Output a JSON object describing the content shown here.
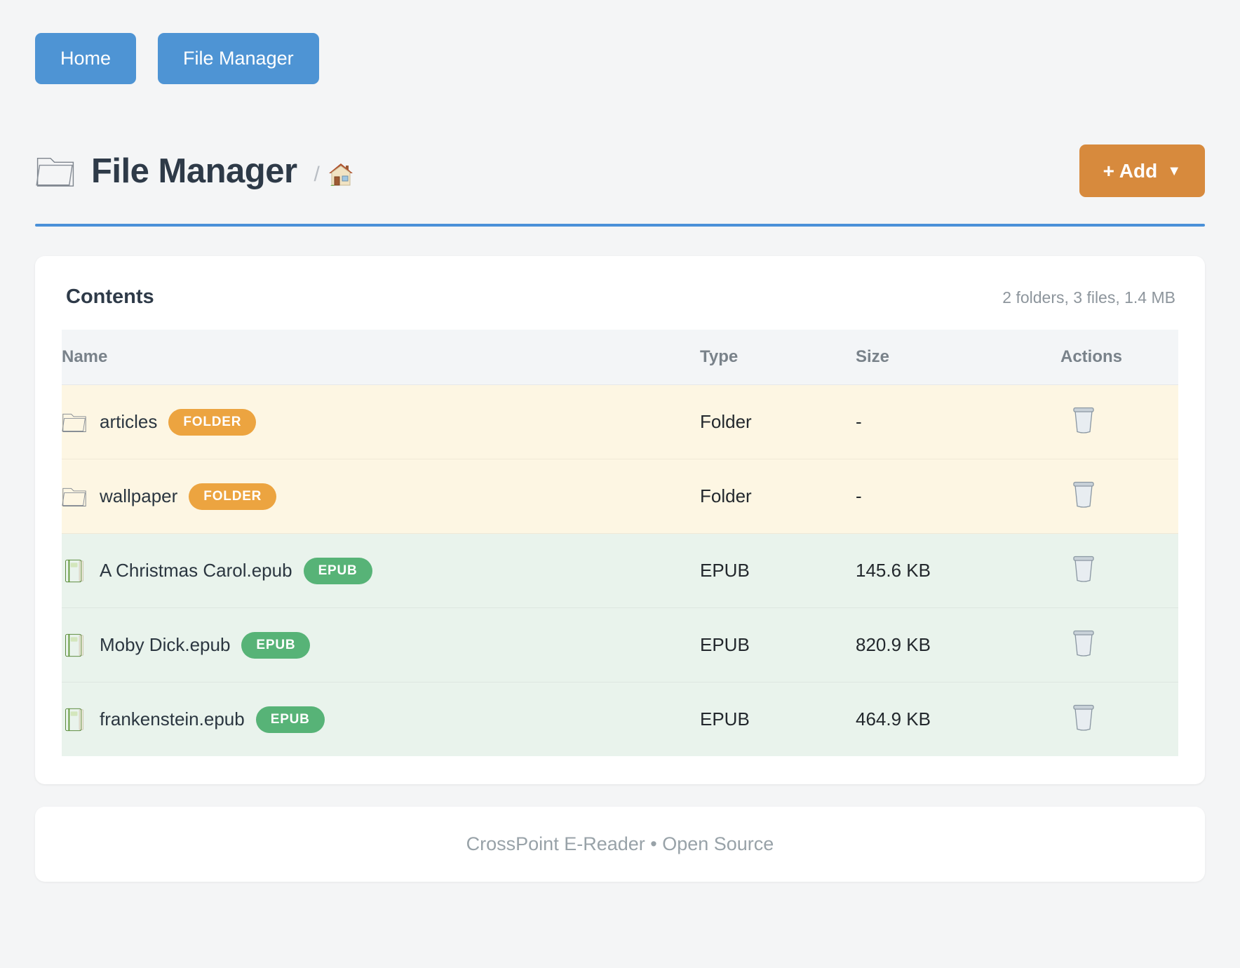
{
  "nav": {
    "home_label": "Home",
    "file_manager_label": "File Manager"
  },
  "header": {
    "title": "File Manager",
    "title_icon": "folder-icon",
    "breadcrumb_separator": "/",
    "breadcrumb_home_icon": "house-icon",
    "add_button_label": "+ Add",
    "add_button_caret": "▼"
  },
  "contents": {
    "title": "Contents",
    "summary": "2 folders, 3 files, 1.4 MB",
    "columns": [
      "Name",
      "Type",
      "Size",
      "Actions"
    ],
    "action_icon": "trash-icon",
    "rows": [
      {
        "name": "articles",
        "badge": "FOLDER",
        "type": "Folder",
        "size": "-",
        "kind": "folder",
        "icon": "folder-icon"
      },
      {
        "name": "wallpaper",
        "badge": "FOLDER",
        "type": "Folder",
        "size": "-",
        "kind": "folder",
        "icon": "folder-icon"
      },
      {
        "name": "A Christmas Carol.epub",
        "badge": "EPUB",
        "type": "EPUB",
        "size": "145.6 KB",
        "kind": "epub",
        "icon": "book-icon"
      },
      {
        "name": "Moby Dick.epub",
        "badge": "EPUB",
        "type": "EPUB",
        "size": "820.9 KB",
        "kind": "epub",
        "icon": "book-icon"
      },
      {
        "name": "frankenstein.epub",
        "badge": "EPUB",
        "type": "EPUB",
        "size": "464.9 KB",
        "kind": "epub",
        "icon": "book-icon"
      }
    ]
  },
  "footer": {
    "text": "CrossPoint E-Reader • Open Source"
  },
  "colors": {
    "page_background": "#f4f5f6",
    "nav_button_blue": "#4e94d4",
    "add_button_orange": "#d78a3d",
    "title_rule_blue": "#4a90d8",
    "heading_text": "#2e3a48",
    "table_header_bg": "#f3f5f7",
    "table_header_text": "#79828a",
    "folder_row_bg": "#fdf6e3",
    "epub_row_bg": "#e9f3ec",
    "folder_badge": "#eca440",
    "epub_badge": "#57b377",
    "muted_text": "#8d959c",
    "footer_text": "#98a2a8"
  }
}
